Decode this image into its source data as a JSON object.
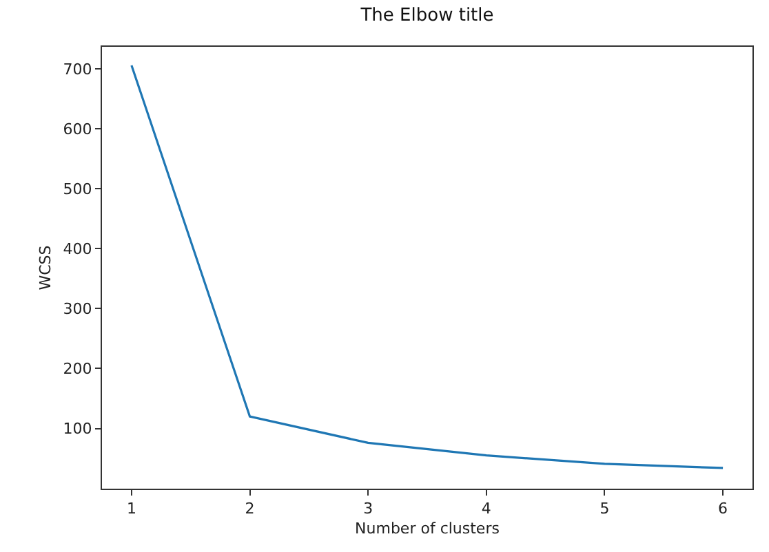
{
  "chart_data": {
    "type": "line",
    "title": "The Elbow title",
    "xlabel": "Number of clusters",
    "ylabel": "WCSS",
    "x": [
      1,
      2,
      3,
      4,
      5,
      6
    ],
    "series": [
      {
        "color": "#1f77b4",
        "values": [
          706,
          120,
          76,
          55,
          41,
          34
        ]
      }
    ],
    "xlim": [
      0.75,
      6.25
    ],
    "xticks": [
      1,
      2,
      3,
      4,
      5,
      6
    ],
    "ylim": [
      -0.5,
      737
    ],
    "yticks": [
      100,
      200,
      300,
      400,
      500,
      600,
      700
    ],
    "marker": "none",
    "line_style": "solid"
  }
}
